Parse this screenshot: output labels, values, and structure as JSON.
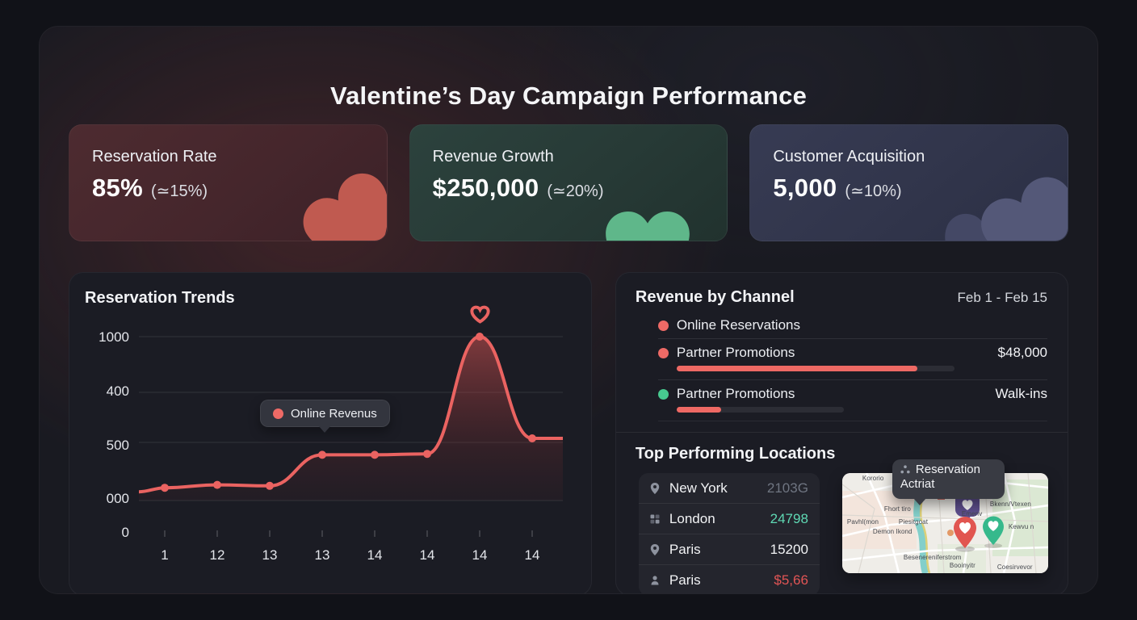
{
  "title": "Valentine’s Day Campaign Performance",
  "stats": [
    {
      "label": "Reservation Rate",
      "value": "85%",
      "delta": "(≃15%)",
      "heart_color": "#c05a50"
    },
    {
      "label": "Revenue Growth",
      "value": "$250,000",
      "delta": "(≃20%)",
      "heart_color": "#5fb78a"
    },
    {
      "label": "Customer Acquisition",
      "value": "5,000",
      "delta": "(≃10%)",
      "heart_color": "#545878"
    }
  ],
  "trends": {
    "title": "Reservation Trends",
    "tooltip_label": "Online Revenus",
    "y_labels": [
      "1000",
      "400",
      "500",
      "000",
      "0"
    ],
    "x_labels": [
      "1",
      "12",
      "13",
      "13",
      "14",
      "14",
      "14",
      "14"
    ]
  },
  "chart_data": {
    "type": "line",
    "title": "Reservation Trends",
    "x": [
      "1",
      "12",
      "13",
      "13",
      "14",
      "14",
      "14",
      "14"
    ],
    "series": [
      {
        "name": "Online Revenus",
        "values": [
          220,
          235,
          230,
          390,
          390,
          395,
          1000,
          475
        ]
      }
    ],
    "y_axis_tick_labels": [
      "1000",
      "400",
      "500",
      "000",
      "0"
    ],
    "ylim": [
      0,
      1050
    ],
    "grid": true,
    "line_color": "#ea6361",
    "annotation": "heart icon above peak at 7th point"
  },
  "revenue": {
    "title": "Revenue by Channel",
    "period": "Feb 1 - Feb 15",
    "rows": [
      {
        "label": "Online Reservations",
        "value": "",
        "dot_color": "#ee6a66",
        "fill_pct": 0,
        "track_pct": 0
      },
      {
        "label": "Partner Promotions",
        "value": "$48,000",
        "dot_color": "#ee6a66",
        "fill_pct": 65,
        "track_pct": 75
      },
      {
        "label": "Partner Promotions",
        "value": "Walk-ins",
        "dot_color": "#47c98f",
        "fill_pct": 12,
        "track_pct": 45
      }
    ]
  },
  "locations": {
    "title": "Top Performing Locations",
    "rows": [
      {
        "icon": "map-pin",
        "name": "New York",
        "value": "2103G",
        "value_color": "#6f7581"
      },
      {
        "icon": "building-grid",
        "name": "London",
        "value": "24798",
        "value_color": "#5fd9b4"
      },
      {
        "icon": "map-pin",
        "name": "Paris",
        "value": "15200",
        "value_color": "#f2f3f5"
      },
      {
        "icon": "person",
        "name": "Paris",
        "value": "$5,66",
        "value_color": "#e25555"
      }
    ],
    "map": {
      "tooltip_line1": "Reservation",
      "tooltip_line2": "Actriat",
      "labels": [
        "Kororio",
        "Fhort tiro",
        "Pavhl(mon",
        "Piesitgoat",
        "Demon Ikond",
        "Emenv",
        "Bkenn/Vtexen",
        "Kewvu n",
        "Besenereniferstrom",
        "Booinyitr",
        "Coesirvevor"
      ]
    }
  },
  "colors": {
    "accent_coral": "#ee6a66",
    "accent_green": "#47c98f",
    "accent_teal_value": "#5fd9b4",
    "accent_red_value": "#e25555",
    "line": "#ea6361"
  }
}
